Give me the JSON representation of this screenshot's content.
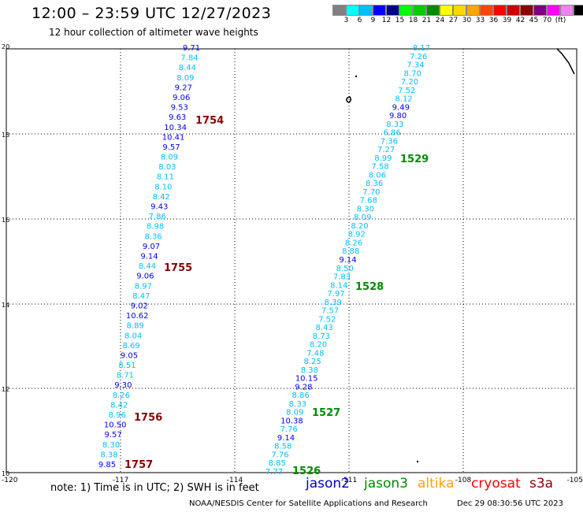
{
  "header": {
    "title": "12:00 – 23:59 UTC 12/27/2023",
    "subtitle": "12 hour collection of altimeter wave heights"
  },
  "legend": {
    "colors": [
      "#808080",
      "#00ffff",
      "#00bfff",
      "#0000ff",
      "#00008b",
      "#00ff00",
      "#00cd00",
      "#008b00",
      "#ffff00",
      "#ffd700",
      "#ffa500",
      "#ff4500",
      "#ff0000",
      "#cd0000",
      "#8b0000",
      "#800080",
      "#ff00ff",
      "#ee82ee",
      "#000000"
    ],
    "labels": [
      "3",
      "6",
      "9",
      "12",
      "15",
      "18",
      "21",
      "24",
      "27",
      "30",
      "33",
      "36",
      "39",
      "42",
      "45",
      "70",
      "(ft)"
    ]
  },
  "map": {
    "lat_ticks": [
      "20",
      "18",
      "16",
      "14",
      "12",
      "10"
    ],
    "lon_ticks": [
      "-120",
      "-117",
      "-114",
      "-111",
      "-108",
      "-105"
    ]
  },
  "tracks": [
    {
      "values": [
        "9.71",
        "7.84",
        "8.44",
        "8.09",
        "9.27",
        "9.06",
        "9.53",
        "9.63",
        "10.34",
        "10.41",
        "9.57",
        "8.09",
        "8.03",
        "8.11",
        "8.10",
        "8.42",
        "9.43",
        "7.86",
        "8.98",
        "8.36",
        "9.07",
        "9.14",
        "8.44",
        "9.06",
        "8.97",
        "8.47",
        "9.02",
        "10.62",
        "8.89",
        "8.04",
        "8.69",
        "9.05",
        "8.51",
        "8.71",
        "9.30",
        "8.26",
        "8.42",
        "8.96",
        "10.50",
        "9.57",
        "8.30",
        "8.38",
        "9.85"
      ]
    },
    {
      "values": [
        "8.17",
        "7.26",
        "7.34",
        "8.70",
        "7.20",
        "7.52",
        "8.12",
        "9.49",
        "9.80",
        "8.33",
        "6.86",
        "7.36",
        "7.27",
        "8.99",
        "7.58",
        "8.06",
        "8.36",
        "7.70",
        "7.68",
        "8.30",
        "8.09",
        "8.20",
        "8.92",
        "8.26",
        "8.88",
        "9.14",
        "8.50",
        "7.83",
        "8.14",
        "7.97",
        "8.39",
        "7.57",
        "7.52",
        "8.43",
        "8.73",
        "8.20",
        "7.48",
        "8.25",
        "8.38",
        "10.15",
        "9.28",
        "8.86",
        "8.33",
        "8.09",
        "10.38",
        "7.76",
        "9.14",
        "8.58",
        "7.76",
        "8.85",
        "7.77"
      ]
    }
  ],
  "time_labels": [
    "1754",
    "1755",
    "1756",
    "1757",
    "1529",
    "1528",
    "1527",
    "1526"
  ],
  "footer": {
    "note": "note: 1) Time is in UTC; 2) SWH is in feet",
    "satellites": [
      {
        "name": "jason2",
        "color": "#0000cd"
      },
      {
        "name": "jason3",
        "color": "#008b00"
      },
      {
        "name": "altika",
        "color": "#ffa500"
      },
      {
        "name": "cryosat",
        "color": "#ff0000"
      },
      {
        "name": "s3a",
        "color": "#8b0000"
      }
    ],
    "credit": "NOAA/NESDIS Center for Satellite Applications and Research",
    "generated": "Dec 29 08:30:56 UTC 2023"
  }
}
